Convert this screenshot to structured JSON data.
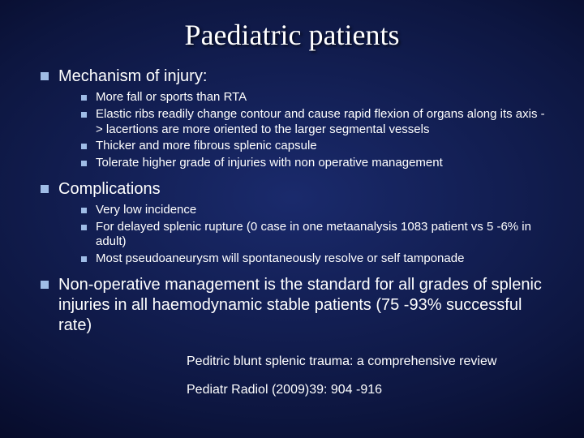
{
  "title": "Paediatric patients",
  "colors": {
    "bullet": "#9fbce6",
    "text": "#ffffff",
    "bg_center": "#1a2a6c",
    "bg_edge": "#000012"
  },
  "typography": {
    "title_font": "Times New Roman",
    "body_font": "Arial",
    "title_size_pt": 36,
    "lvl1_size_pt": 20,
    "lvl2_size_pt": 15,
    "ref_size_pt": 16
  },
  "bullets": [
    {
      "text": "Mechanism of injury:",
      "sub": [
        "More fall or sports than RTA",
        "Elastic ribs readily change contour and cause rapid flexion of organs along its axis -> lacertions are more oriented to the larger segmental vessels",
        "Thicker and more fibrous splenic capsule",
        "Tolerate higher grade of injuries with non operative management"
      ]
    },
    {
      "text": "Complications",
      "sub": [
        "Very low incidence",
        "For delayed splenic rupture (0 case in one metaanalysis 1083 patient vs 5 -6% in adult)",
        "Most pseudoaneurysm will spontaneously resolve or self tamponade"
      ]
    },
    {
      "text": "Non-operative management is the standard for all grades of splenic injuries in all haemodynamic stable patients (75 -93% successful rate)",
      "sub": []
    }
  ],
  "references": [
    "Peditric blunt splenic trauma: a comprehensive review",
    "Pediatr Radiol (2009)39: 904 -916"
  ]
}
